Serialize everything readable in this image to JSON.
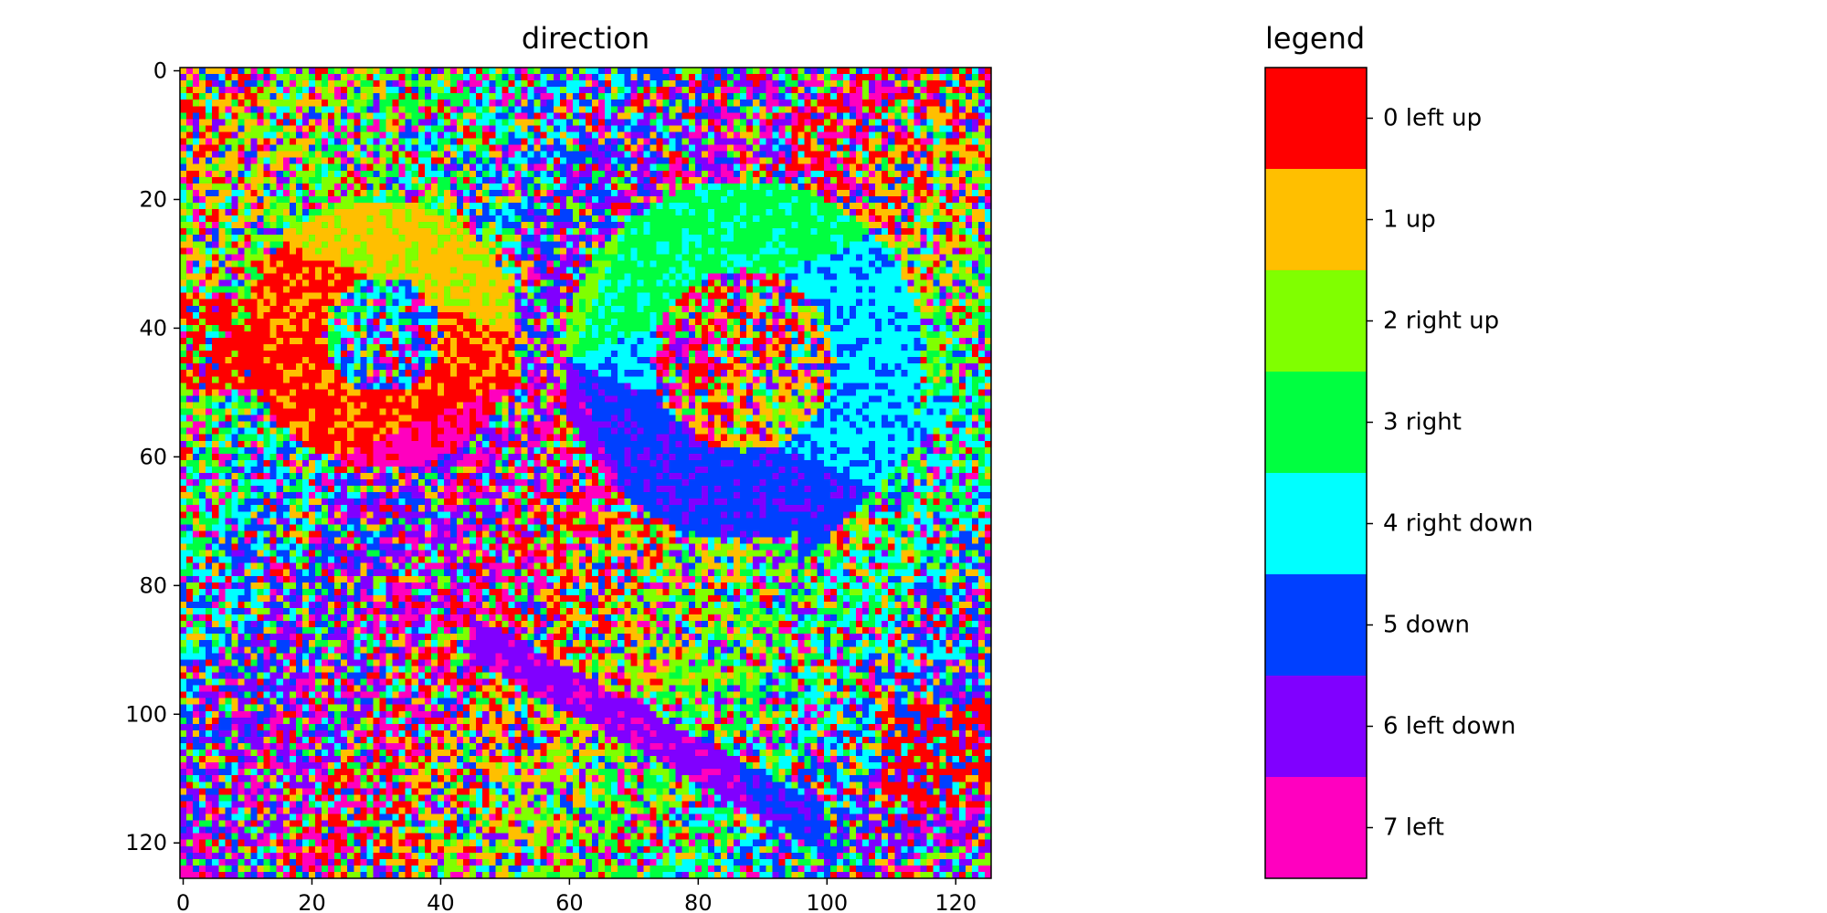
{
  "chart_data": [
    {
      "type": "heatmap",
      "title": "direction",
      "xlabel": "",
      "ylabel": "",
      "rows": 126,
      "cols": 126,
      "xlim": [
        0,
        126
      ],
      "ylim": [
        126,
        0
      ],
      "xticks": [
        0,
        20,
        40,
        60,
        80,
        100,
        120
      ],
      "yticks": [
        0,
        20,
        40,
        60,
        80,
        100,
        120
      ],
      "value_range": [
        0,
        7
      ],
      "colormap": [
        "#ff0000",
        "#ffbf00",
        "#80ff00",
        "#00ff40",
        "#00ffff",
        "#0040ff",
        "#8000ff",
        "#ff00bf"
      ],
      "grid": false
    },
    {
      "type": "legend",
      "title": "legend",
      "categories": [
        {
          "value": 0,
          "label": "0 left up",
          "color": "#ff0000"
        },
        {
          "value": 1,
          "label": "1 up",
          "color": "#ffbf00"
        },
        {
          "value": 2,
          "label": "2 right up",
          "color": "#80ff00"
        },
        {
          "value": 3,
          "label": "3 right",
          "color": "#00ff40"
        },
        {
          "value": 4,
          "label": "4 right down",
          "color": "#00ffff"
        },
        {
          "value": 5,
          "label": "5 down",
          "color": "#0040ff"
        },
        {
          "value": 6,
          "label": "6 left down",
          "color": "#8000ff"
        },
        {
          "value": 7,
          "label": "7 left",
          "color": "#ff00bf"
        }
      ]
    }
  ]
}
